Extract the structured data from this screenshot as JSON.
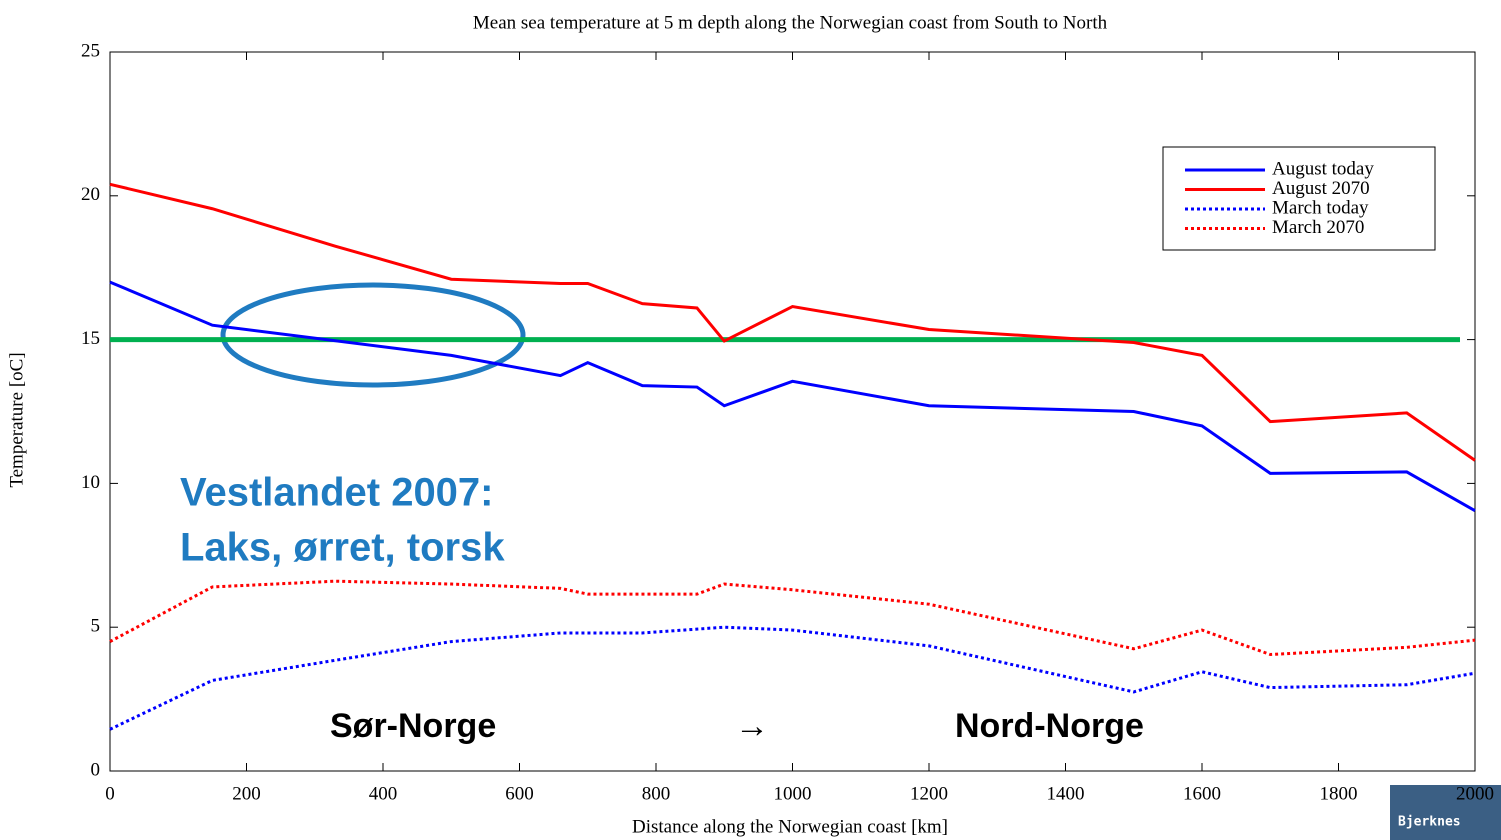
{
  "chart_data": {
    "type": "line",
    "title": "Mean sea temperature at 5 m depth along the Norwegian coast from South to North",
    "x_label": "Distance along the Norwegian coast [km]",
    "y_label": "Temperature [oC]",
    "xlim": [
      0,
      2000
    ],
    "ylim": [
      0,
      25
    ],
    "xticks": [
      0,
      200,
      400,
      600,
      800,
      1000,
      1200,
      1400,
      1600,
      1800,
      2000
    ],
    "yticks": [
      0,
      5,
      10,
      15,
      20,
      25
    ],
    "legend": "upper right",
    "series": [
      {
        "name": "August today",
        "color": "#0000ff",
        "style": "solid",
        "x": [
          0,
          150,
          500,
          660,
          700,
          780,
          860,
          900,
          1000,
          1200,
          1500,
          1600,
          1700,
          1900,
          2000
        ],
        "values": [
          17.0,
          15.5,
          14.45,
          13.75,
          14.2,
          13.4,
          13.35,
          12.7,
          13.55,
          12.7,
          12.5,
          12.0,
          10.35,
          10.4,
          9.05
        ]
      },
      {
        "name": "August 2070",
        "color": "#ff0000",
        "style": "solid",
        "x": [
          0,
          150,
          330,
          500,
          660,
          700,
          780,
          860,
          900,
          1000,
          1200,
          1500,
          1600,
          1700,
          1900,
          2000
        ],
        "values": [
          20.4,
          19.55,
          18.25,
          17.1,
          16.95,
          16.95,
          16.25,
          16.1,
          14.95,
          16.15,
          15.35,
          14.9,
          14.45,
          12.15,
          12.45,
          10.8
        ]
      },
      {
        "name": "March today",
        "color": "#0000ff",
        "style": "dotted",
        "x": [
          0,
          150,
          330,
          500,
          660,
          780,
          900,
          1000,
          1200,
          1500,
          1600,
          1700,
          1900,
          2000
        ],
        "values": [
          1.45,
          3.15,
          3.85,
          4.5,
          4.8,
          4.8,
          5.0,
          4.9,
          4.35,
          2.75,
          3.45,
          2.9,
          3.0,
          3.4
        ]
      },
      {
        "name": "March 2070",
        "color": "#ff0000",
        "style": "dotted",
        "x": [
          0,
          150,
          330,
          500,
          660,
          700,
          860,
          900,
          1000,
          1200,
          1500,
          1600,
          1700,
          1900,
          2000
        ],
        "values": [
          4.5,
          6.4,
          6.6,
          6.5,
          6.35,
          6.15,
          6.15,
          6.5,
          6.3,
          5.8,
          4.25,
          4.9,
          4.05,
          4.3,
          4.55
        ]
      }
    ],
    "threshold": {
      "value": 15,
      "color": "#00b050"
    },
    "annotations": [
      "Vestlandet 2007:",
      "Laks, ørret, torsk",
      "Sør-Norge",
      "→",
      "Nord-Norge"
    ],
    "logo_text": "Bjerknes"
  }
}
